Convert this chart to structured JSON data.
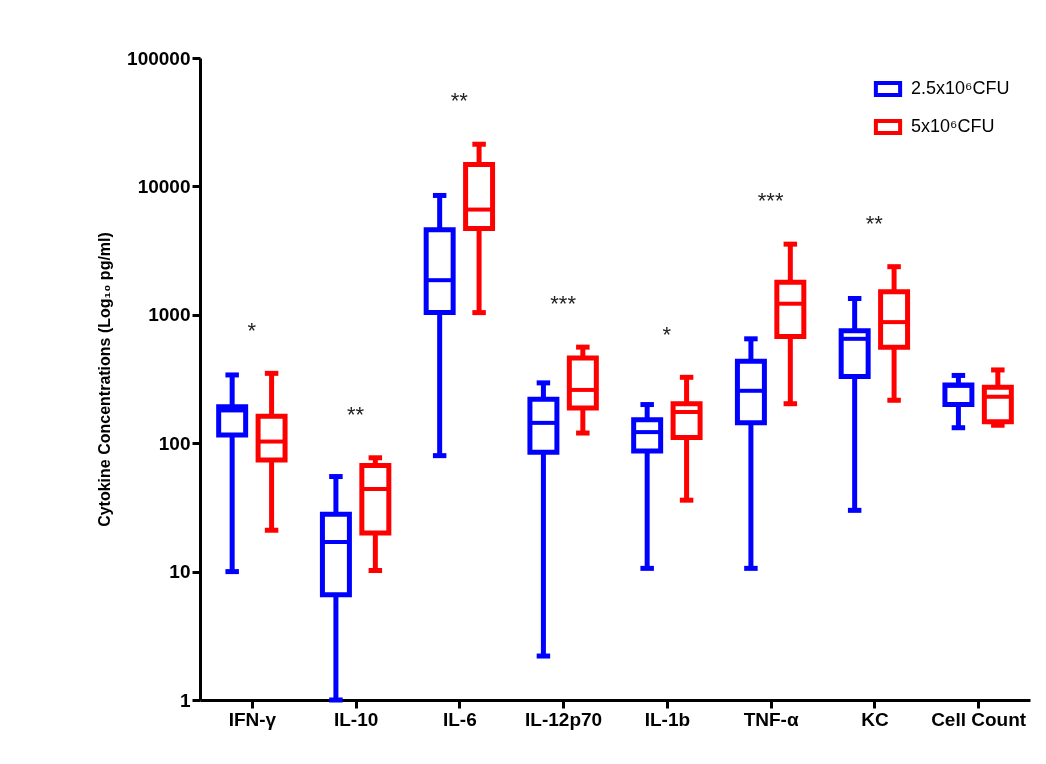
{
  "chart_data": {
    "type": "box",
    "ylabel": "Cytokine Concentrations (Log₁₀ pg/ml)",
    "categories": [
      "IFN-γ",
      "IL-10",
      "IL-6",
      "IL-12p70",
      "IL-1b",
      "TNF-α",
      "KC",
      "Cell Count"
    ],
    "log": true,
    "ylim": [
      1,
      100000
    ],
    "yticks": [
      1,
      10,
      100,
      1000,
      10000,
      100000
    ],
    "grid": false,
    "legend": "top right",
    "series": [
      {
        "name": "2.5x10⁶CFU",
        "color": "#0000ff",
        "boxes": [
          {
            "low": 10,
            "q1": 116,
            "median": 180,
            "q3": 192,
            "high": 340
          },
          {
            "low": 1,
            "q1": 6.6,
            "median": 17,
            "q3": 28,
            "high": 55
          },
          {
            "low": 80,
            "q1": 1040,
            "median": 1860,
            "q3": 4600,
            "high": 8500
          },
          {
            "low": 2.2,
            "q1": 85,
            "median": 144,
            "q3": 220,
            "high": 295
          },
          {
            "low": 10.6,
            "q1": 87,
            "median": 122,
            "q3": 152,
            "high": 200
          },
          {
            "low": 10.6,
            "q1": 144,
            "median": 256,
            "q3": 435,
            "high": 650
          },
          {
            "low": 30,
            "q1": 330,
            "median": 650,
            "q3": 750,
            "high": 1340
          },
          {
            "low": 132,
            "q1": 200,
            "median": 280,
            "q3": 284,
            "high": 337
          }
        ]
      },
      {
        "name": "5x10⁶CFU",
        "color": "#ff0000",
        "boxes": [
          {
            "low": 21,
            "q1": 74,
            "median": 103,
            "q3": 162,
            "high": 350
          },
          {
            "low": 10.2,
            "q1": 20,
            "median": 44,
            "q3": 67,
            "high": 77
          },
          {
            "low": 1040,
            "q1": 4700,
            "median": 6600,
            "q3": 14800,
            "high": 21300
          },
          {
            "low": 120,
            "q1": 188,
            "median": 260,
            "q3": 460,
            "high": 560
          },
          {
            "low": 36,
            "q1": 111,
            "median": 175,
            "q3": 203,
            "high": 326
          },
          {
            "low": 203,
            "q1": 677,
            "median": 1220,
            "q3": 1790,
            "high": 3550
          },
          {
            "low": 216,
            "q1": 558,
            "median": 877,
            "q3": 1510,
            "high": 2370
          },
          {
            "low": 138,
            "q1": 147,
            "median": 230,
            "q3": 273,
            "high": 372
          }
        ]
      }
    ],
    "annotations": [
      "*",
      "**",
      "**",
      "***",
      "*",
      "***",
      "**"
    ]
  }
}
